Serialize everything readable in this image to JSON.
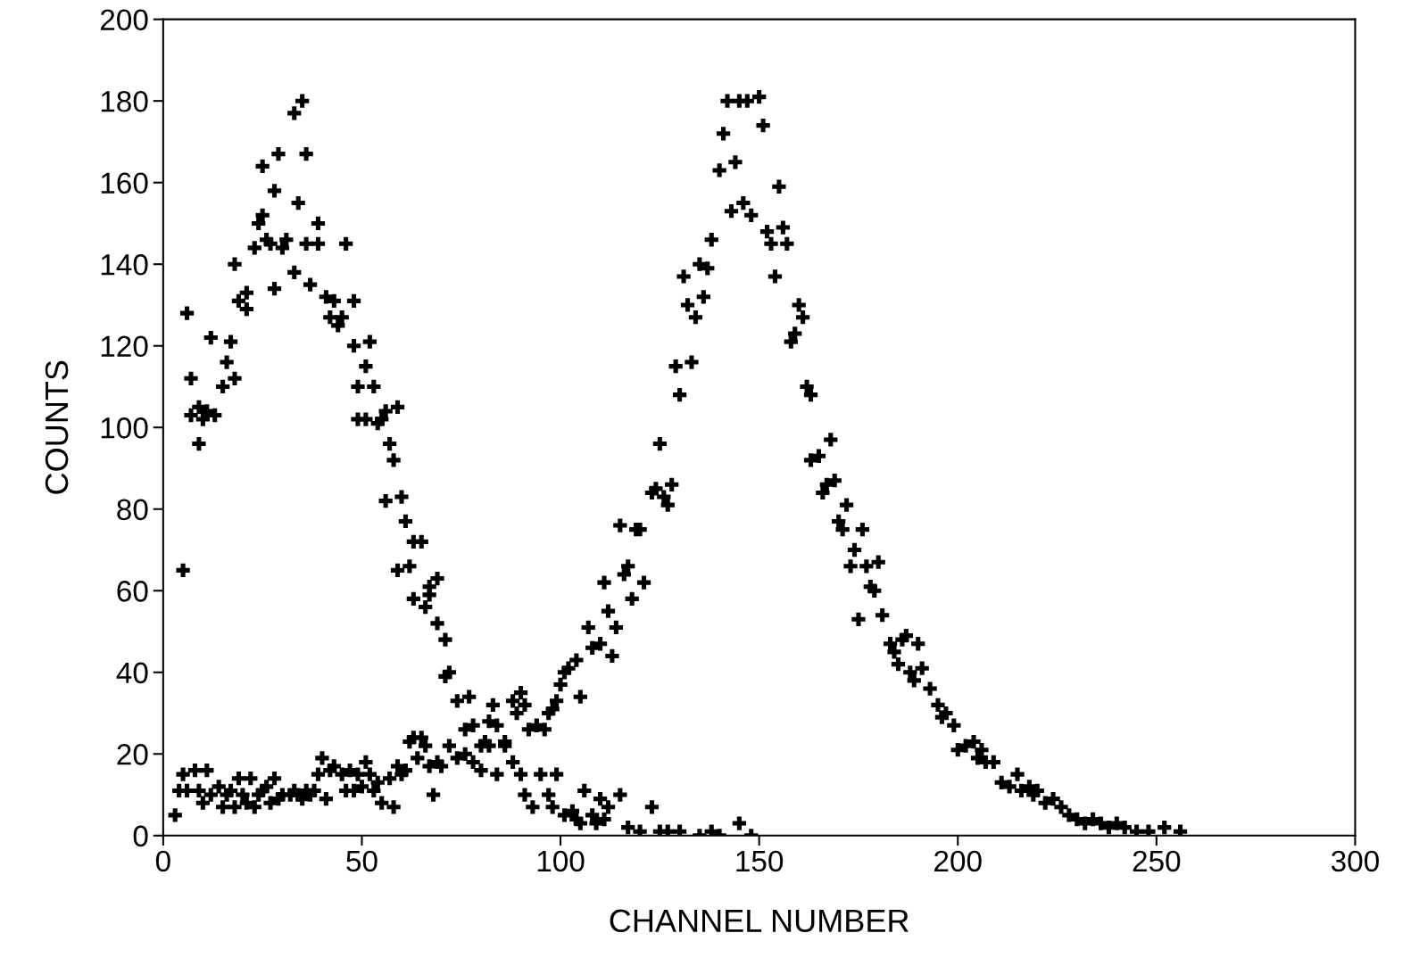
{
  "chart_data": {
    "type": "scatter",
    "xlabel": "CHANNEL NUMBER",
    "ylabel": "COUNTS",
    "xlim": [
      0,
      300
    ],
    "xticks": [
      0,
      50,
      100,
      150,
      200,
      250,
      300
    ],
    "ylim": [
      0,
      200
    ],
    "yticks": [
      0,
      20,
      40,
      60,
      80,
      100,
      120,
      140,
      160,
      180,
      200
    ],
    "grid": false,
    "marker": "cross",
    "legend": false,
    "series": [
      {
        "color": "#000000",
        "x": [
          5,
          6,
          7,
          7,
          9,
          9,
          10,
          11,
          12,
          13,
          15,
          16,
          17,
          18,
          18,
          19,
          21,
          21,
          23,
          24,
          25,
          25,
          26,
          27,
          28,
          28,
          29,
          30,
          31,
          33,
          33,
          34,
          35,
          36,
          36,
          37,
          39,
          39,
          41,
          42,
          43,
          44,
          45,
          46,
          48,
          48,
          49,
          49,
          51,
          51,
          52,
          53,
          54,
          55,
          56,
          56,
          57,
          58,
          59,
          59,
          60,
          61,
          62,
          63,
          63,
          65,
          66,
          67,
          67,
          69,
          69,
          71,
          71,
          72,
          74,
          76,
          77,
          78,
          80,
          81,
          82,
          83,
          84,
          86,
          88,
          90,
          91,
          92,
          94
        ],
        "values": [
          65,
          128,
          112,
          103,
          96,
          105,
          102,
          104,
          122,
          103,
          110,
          116,
          121,
          112,
          140,
          131,
          129,
          133,
          144,
          150,
          152,
          164,
          146,
          145,
          134,
          158,
          167,
          144,
          146,
          177,
          138,
          155,
          180,
          167,
          145,
          135,
          150,
          145,
          132,
          127,
          131,
          125,
          127,
          145,
          131,
          120,
          110,
          102,
          102,
          115,
          121,
          110,
          101,
          102,
          104,
          82,
          96,
          92,
          65,
          105,
          83,
          77,
          66,
          58,
          72,
          72,
          56,
          59,
          61,
          63,
          52,
          48,
          39,
          40,
          33,
          26,
          34,
          27,
          22,
          23,
          28,
          32,
          27,
          23,
          33,
          35,
          32,
          26,
          27
        ]
      },
      {
        "color": "#000000",
        "x": [
          3,
          4,
          5,
          6,
          8,
          9,
          10,
          11,
          12,
          14,
          15,
          16,
          17,
          18,
          19,
          20,
          21,
          22,
          23,
          24,
          25,
          26,
          27,
          28,
          29,
          30,
          32,
          33,
          34,
          35,
          36,
          37,
          38,
          39,
          40,
          41,
          42,
          43,
          45,
          46,
          47,
          48,
          49,
          50,
          51,
          52,
          53,
          54,
          55,
          57,
          58,
          59,
          60,
          61,
          62,
          63,
          64,
          65,
          66,
          67,
          68,
          69,
          70,
          72,
          74,
          76,
          78,
          80,
          82,
          84,
          86,
          88,
          89,
          90,
          91,
          93,
          95,
          97,
          98,
          99,
          101,
          103,
          104,
          105,
          106,
          108,
          109,
          110,
          111,
          112,
          115,
          117,
          120,
          123,
          125,
          127,
          130,
          135,
          138,
          140,
          145,
          148
        ],
        "values": [
          5,
          11,
          15,
          11,
          16,
          11,
          8,
          16,
          10,
          12,
          7,
          10,
          11,
          7,
          14,
          10,
          8,
          14,
          7,
          10,
          11,
          12,
          8,
          14,
          9,
          10,
          10,
          11,
          10,
          9,
          11,
          10,
          11,
          15,
          19,
          9,
          16,
          17,
          15,
          11,
          16,
          11,
          15,
          12,
          18,
          15,
          11,
          13,
          8,
          14,
          7,
          17,
          15,
          16,
          23,
          24,
          19,
          24,
          22,
          17,
          10,
          18,
          17,
          22,
          19,
          20,
          18,
          16,
          22,
          15,
          22,
          18,
          30,
          15,
          10,
          7,
          15,
          10,
          7,
          15,
          5,
          6,
          4,
          3,
          11,
          5,
          3,
          9,
          4,
          7,
          10,
          2,
          1,
          7,
          1,
          1,
          1,
          0,
          1,
          0,
          3,
          0
        ]
      },
      {
        "color": "#000000",
        "x": [
          96,
          97,
          98,
          99,
          100,
          101,
          102,
          104,
          105,
          107,
          108,
          110,
          111,
          112,
          113,
          114,
          115,
          116,
          117,
          118,
          119,
          120,
          121,
          123,
          124,
          125,
          126,
          127,
          128,
          129,
          130,
          131,
          132,
          133,
          134,
          135,
          136,
          137,
          138,
          140,
          141,
          142,
          143,
          144,
          145,
          146,
          147,
          148,
          150,
          151,
          152,
          153,
          154,
          155,
          156,
          157,
          158,
          159,
          160,
          161,
          162,
          163,
          163,
          165,
          166,
          167,
          168,
          169,
          170,
          171,
          172,
          173,
          174,
          175,
          176,
          177,
          178,
          179,
          180,
          181,
          183,
          184,
          185,
          186,
          187,
          188,
          189,
          190,
          191,
          193,
          195,
          196,
          197,
          199,
          200,
          202,
          204,
          205,
          206,
          207,
          209,
          211,
          213,
          215,
          216,
          218,
          219,
          220,
          222,
          224,
          226,
          228,
          230,
          232,
          234,
          236,
          238,
          240,
          242,
          245,
          248,
          252,
          256
        ],
        "values": [
          26,
          30,
          31,
          33,
          37,
          40,
          41,
          43,
          34,
          51,
          46,
          47,
          62,
          55,
          44,
          51,
          76,
          64,
          66,
          58,
          75,
          75,
          62,
          84,
          85,
          96,
          83,
          81,
          86,
          115,
          108,
          137,
          130,
          116,
          127,
          140,
          132,
          139,
          146,
          163,
          172,
          180,
          153,
          165,
          180,
          155,
          180,
          152,
          181,
          174,
          148,
          145,
          137,
          159,
          149,
          145,
          121,
          123,
          130,
          127,
          110,
          108,
          92,
          93,
          84,
          86,
          97,
          87,
          77,
          75,
          81,
          66,
          70,
          53,
          75,
          66,
          61,
          60,
          67,
          54,
          47,
          45,
          42,
          48,
          49,
          40,
          38,
          47,
          41,
          36,
          32,
          29,
          30,
          27,
          21,
          22,
          23,
          19,
          21,
          18,
          18,
          13,
          12,
          15,
          11,
          12,
          10,
          11,
          8,
          9,
          7,
          5,
          4,
          3,
          4,
          3,
          2,
          3,
          2,
          1,
          1,
          2,
          1
        ]
      }
    ]
  }
}
